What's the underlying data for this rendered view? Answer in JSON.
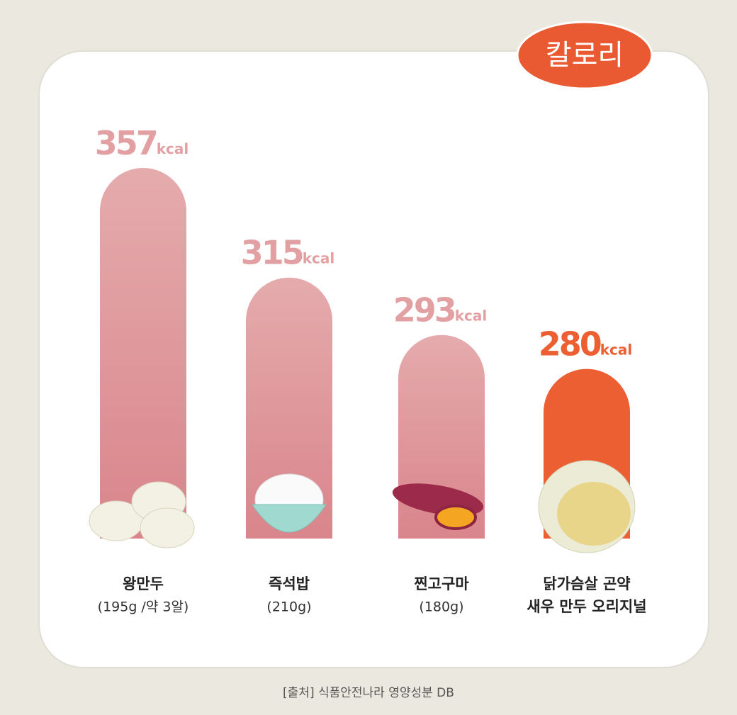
{
  "chart_data": {
    "type": "bar",
    "title": "칼로리",
    "categories": [
      [
        "왕만두"
      ],
      [
        "즉석밥"
      ],
      [
        "찐고구마"
      ],
      [
        "닭가슴살 곤약",
        "새우 만두 오리지널"
      ]
    ],
    "category_notes": [
      "(195g /약 3알)",
      "(210g)",
      "(180g)",
      null
    ],
    "values": [
      357,
      315,
      293,
      280
    ],
    "unit": "kcal",
    "colors": [
      "#dd9196",
      "#dd9196",
      "#dd9196",
      "#ec5f32"
    ],
    "label_colors": [
      "#e3a0a3",
      "#e3a0a3",
      "#e3a0a3",
      "#ec5f32"
    ],
    "ylim": [
      215,
      357
    ],
    "source": "[출처] 식품안전나라 영양성분 DB"
  }
}
